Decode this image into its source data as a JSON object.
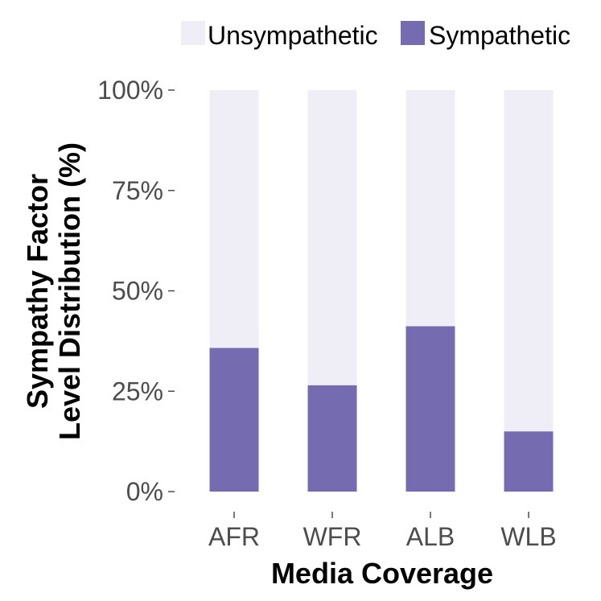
{
  "chart_data": {
    "type": "bar",
    "stacked": true,
    "categories": [
      "AFR",
      "WFR",
      "ALB",
      "WLB"
    ],
    "series": [
      {
        "name": "Unsympathetic",
        "values": [
          64.2,
          73.5,
          58.8,
          85.0
        ],
        "color": "#efedf5"
      },
      {
        "name": "Sympathetic",
        "values": [
          35.8,
          26.5,
          41.2,
          15.0
        ],
        "color": "#756bb1"
      }
    ],
    "yticks": [
      "0%",
      "25%",
      "50%",
      "75%",
      "100%"
    ],
    "ytick_values": [
      0,
      25,
      50,
      75,
      100
    ],
    "ylim": [
      0,
      100
    ],
    "xlabel": "Media Coverage",
    "ylabel_lines": [
      "Sympathy Factor",
      "Level Distribution (%)"
    ],
    "legend_position": "top",
    "grid": false
  }
}
